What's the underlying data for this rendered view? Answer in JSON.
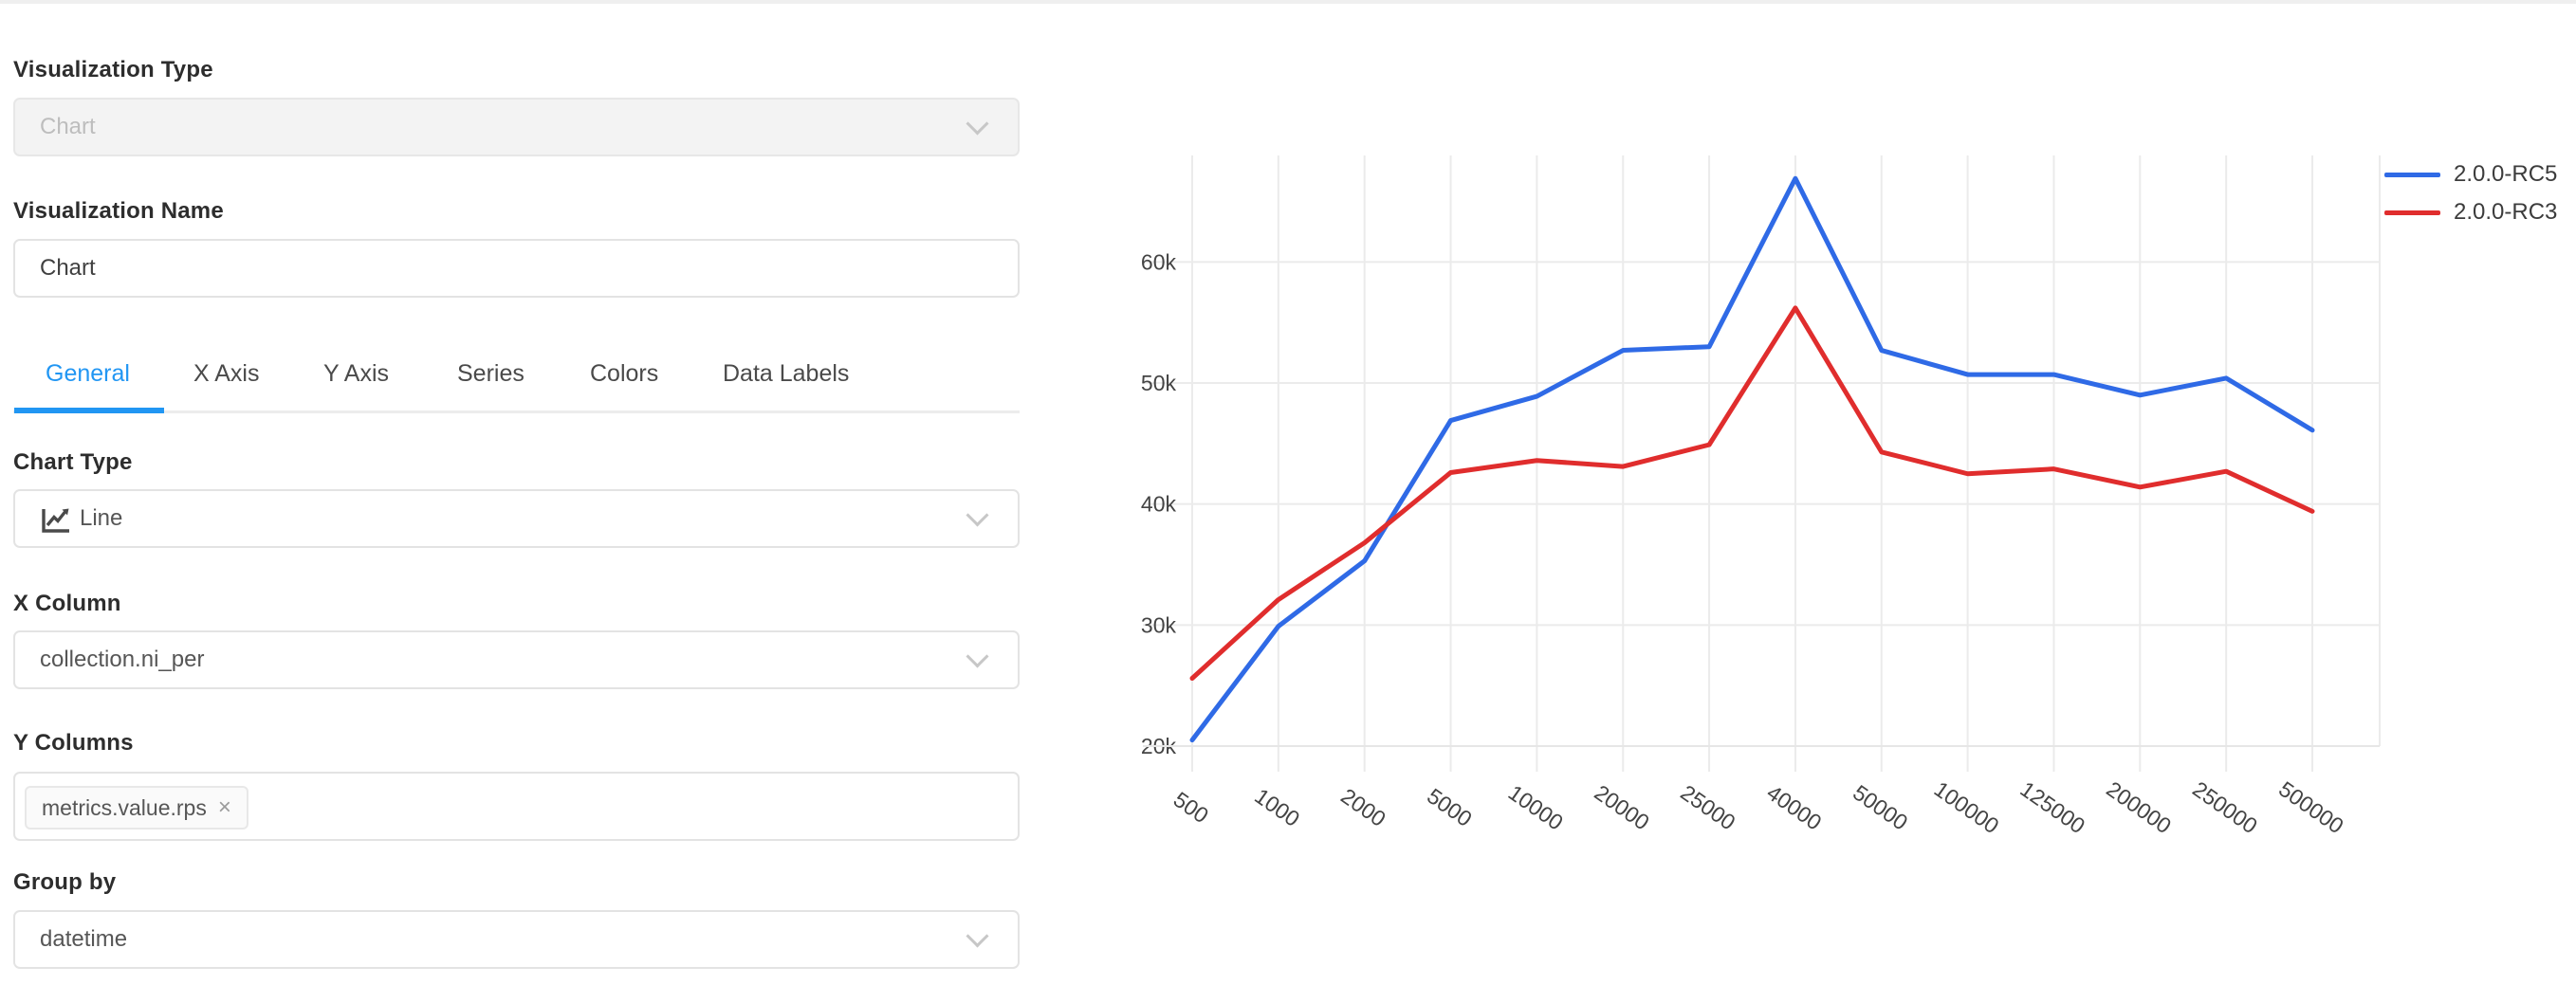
{
  "panel": {
    "visualization_type": {
      "label": "Visualization Type",
      "value": "Chart"
    },
    "visualization_name": {
      "label": "Visualization Name",
      "value": "Chart"
    },
    "tabs": [
      {
        "label": "General",
        "active": true
      },
      {
        "label": "X Axis",
        "active": false
      },
      {
        "label": "Y Axis",
        "active": false
      },
      {
        "label": "Series",
        "active": false
      },
      {
        "label": "Colors",
        "active": false
      },
      {
        "label": "Data Labels",
        "active": false
      }
    ],
    "chart_type": {
      "label": "Chart Type",
      "value": "Line",
      "icon": "line-chart-icon"
    },
    "x_column": {
      "label": "X Column",
      "value": "collection.ni_per"
    },
    "y_columns": {
      "label": "Y Columns",
      "tags": [
        {
          "text": "metrics.value.rps",
          "remove": "×"
        }
      ]
    },
    "group_by": {
      "label": "Group by",
      "value": "datetime"
    }
  },
  "chart_data": {
    "type": "line",
    "title": "",
    "xlabel": "",
    "ylabel": "",
    "grid": true,
    "legend_position": "top-right",
    "categories": [
      "500",
      "1000",
      "2000",
      "5000",
      "10000",
      "20000",
      "25000",
      "40000",
      "50000",
      "100000",
      "125000",
      "200000",
      "250000",
      "500000"
    ],
    "series": [
      {
        "name": "2.0.0-RC5",
        "color": "#2f6ae6",
        "values": [
          20500,
          29900,
          35300,
          46900,
          48900,
          52700,
          53000,
          66900,
          52700,
          50700,
          50700,
          49000,
          50400,
          46100
        ]
      },
      {
        "name": "2.0.0-RC3",
        "color": "#e02d2d",
        "values": [
          25600,
          32100,
          36800,
          42600,
          43600,
          43100,
          44900,
          56200,
          44300,
          42500,
          42900,
          41400,
          42700,
          39400
        ]
      }
    ],
    "yticks": [
      {
        "label": "20k",
        "value": 20000
      },
      {
        "label": "30k",
        "value": 30000
      },
      {
        "label": "40k",
        "value": 40000
      },
      {
        "label": "50k",
        "value": 50000
      },
      {
        "label": "60k",
        "value": 60000
      }
    ],
    "ylim": [
      20000,
      68800
    ],
    "colors": {
      "grid": "#ebebeb",
      "axis": "#e6e6e6",
      "tick_text": "#444444"
    }
  }
}
